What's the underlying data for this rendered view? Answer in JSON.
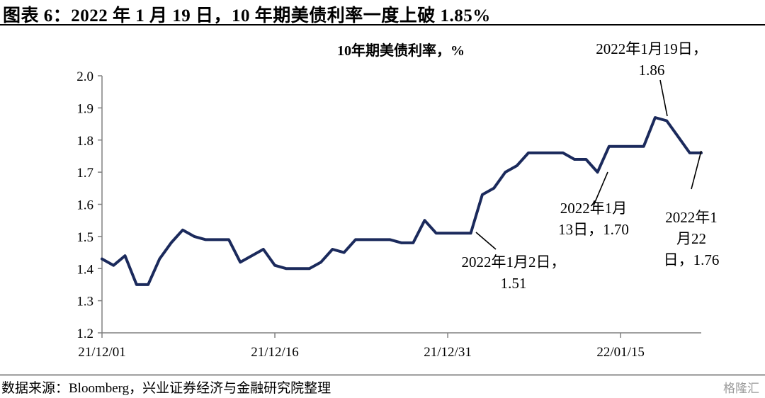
{
  "header": {
    "title": "图表 6：2022 年 1 月 19 日，10 年期美债利率一度上破 1.85%"
  },
  "footer": {
    "source": "数据来源：Bloomberg，兴业证券经济与金融研究院整理",
    "watermark": "格隆汇"
  },
  "colors": {
    "series": "#1b2a5c",
    "axis": "#808080",
    "text": "#000000"
  },
  "chart_data": {
    "type": "line",
    "title": "10年期美债利率，%",
    "xlabel": "",
    "ylabel": "",
    "ylim": [
      1.2,
      2.0
    ],
    "yticks": [
      "1.2",
      "1.3",
      "1.4",
      "1.5",
      "1.6",
      "1.7",
      "1.8",
      "1.9",
      "2.0"
    ],
    "xticks": [
      "21/12/01",
      "21/12/16",
      "21/12/31",
      "22/01/15"
    ],
    "grid": false,
    "legend": "none",
    "series": [
      {
        "x": [
          "2021-12-01",
          "2021-12-02",
          "2021-12-03",
          "2021-12-04",
          "2021-12-05",
          "2021-12-06",
          "2021-12-07",
          "2021-12-08",
          "2021-12-09",
          "2021-12-10",
          "2021-12-11",
          "2021-12-12",
          "2021-12-13",
          "2021-12-14",
          "2021-12-15",
          "2021-12-16",
          "2021-12-17",
          "2021-12-18",
          "2021-12-19",
          "2021-12-20",
          "2021-12-21",
          "2021-12-22",
          "2021-12-23",
          "2021-12-24",
          "2021-12-25",
          "2021-12-26",
          "2021-12-27",
          "2021-12-28",
          "2021-12-29",
          "2021-12-30",
          "2021-12-31",
          "2022-01-01",
          "2022-01-02",
          "2022-01-03",
          "2022-01-04",
          "2022-01-05",
          "2022-01-06",
          "2022-01-07",
          "2022-01-08",
          "2022-01-09",
          "2022-01-10",
          "2022-01-11",
          "2022-01-12",
          "2022-01-13",
          "2022-01-14",
          "2022-01-15",
          "2022-01-16",
          "2022-01-17",
          "2022-01-18",
          "2022-01-19",
          "2022-01-20",
          "2022-01-21",
          "2022-01-22"
        ],
        "values": [
          1.43,
          1.41,
          1.44,
          1.35,
          1.35,
          1.43,
          1.48,
          1.52,
          1.5,
          1.49,
          1.49,
          1.49,
          1.42,
          1.44,
          1.46,
          1.41,
          1.4,
          1.4,
          1.4,
          1.42,
          1.46,
          1.45,
          1.49,
          1.49,
          1.49,
          1.49,
          1.48,
          1.48,
          1.55,
          1.51,
          1.51,
          1.51,
          1.51,
          1.63,
          1.65,
          1.7,
          1.72,
          1.76,
          1.76,
          1.76,
          1.76,
          1.74,
          1.74,
          1.7,
          1.78,
          1.78,
          1.78,
          1.78,
          1.87,
          1.86,
          1.81,
          1.76,
          1.76
        ]
      }
    ],
    "annotations": [
      {
        "lines": [
          "2022年1月19日，",
          "1.86"
        ],
        "x": "2022-01-19",
        "y": 1.86
      },
      {
        "lines": [
          "2022年1月",
          "13日，1.70"
        ],
        "x": "2022-01-13",
        "y": 1.7
      },
      {
        "lines": [
          "2022年1月2日，",
          "1.51"
        ],
        "x": "2022-01-02",
        "y": 1.51
      },
      {
        "lines": [
          "2022年1",
          "月22",
          "日，1.76"
        ],
        "x": "2022-01-22",
        "y": 1.76
      }
    ]
  }
}
